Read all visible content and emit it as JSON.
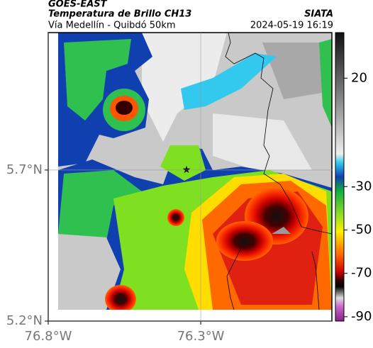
{
  "header": {
    "source": "GOES-EAST",
    "title": "Temperatura de Brillo CH13",
    "organization": "SIATA",
    "subtitle": "Vía Medellín - Quibdó 50km",
    "datetime": "2024-05-19 16:19"
  },
  "map": {
    "xlim": [
      -76.8,
      -75.87
    ],
    "ylim": [
      5.2,
      6.155
    ],
    "xticks": [
      {
        "value": -76.8,
        "label": "76.8°W"
      },
      {
        "value": -76.3,
        "label": "76.3°W"
      }
    ],
    "yticks": [
      {
        "value": 5.2,
        "label": "5.2°N"
      },
      {
        "value": 5.7,
        "label": "5.7°N"
      }
    ]
  },
  "colorbar": {
    "lim": [
      -92,
      41
    ],
    "ticks": [
      20,
      -30,
      -50,
      -70,
      -90
    ]
  }
}
